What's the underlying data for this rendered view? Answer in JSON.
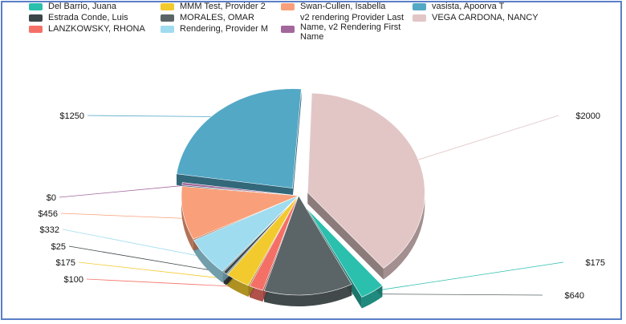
{
  "chart_data": {
    "type": "pie",
    "title": "",
    "legend_placement": "top",
    "slices": [
      {
        "name": "VEGA CARDONA, NANCY",
        "value": 2000,
        "label": "$2000",
        "color": "#e2c6c6"
      },
      {
        "name": "Del Barrio, Juana",
        "value": 175,
        "label": "$175",
        "color": "#2bbfae"
      },
      {
        "name": "MORALES, OMAR",
        "value": 640,
        "label": "$640",
        "color": "#5b6567"
      },
      {
        "name": "LANZKOWSKY, RHONA",
        "value": 100,
        "label": "$100",
        "color": "#f47067"
      },
      {
        "name": "MMM Test, Provider 2",
        "value": 175,
        "label": "$175",
        "color": "#f2ca2e"
      },
      {
        "name": "Estrada Conde, Luis",
        "value": 25,
        "label": "$25",
        "color": "#3b4648"
      },
      {
        "name": "Rendering, Provider M",
        "value": 332,
        "label": "$332",
        "color": "#9fdcef"
      },
      {
        "name": "Swan-Cullen, Isabella",
        "value": 456,
        "label": "$456",
        "color": "#f9a07a"
      },
      {
        "name": "v2 rendering Provider Last Name, v2 Rendering First Name",
        "value": 0,
        "label": "$0",
        "color": "#a3679c"
      },
      {
        "name": "vasista, Apoorva T",
        "value": 1250,
        "label": "$1250",
        "color": "#53a8c6"
      }
    ]
  },
  "legend": [
    {
      "label": "Del Barrio, Juana",
      "color": "#2bbfae"
    },
    {
      "label": "Estrada Conde, Luis",
      "color": "#3b4648"
    },
    {
      "label": "LANZKOWSKY, RHONA",
      "color": "#f47067"
    },
    {
      "label": "MMM Test, Provider 2",
      "color": "#f2ca2e"
    },
    {
      "label": "MORALES, OMAR",
      "color": "#5b6567"
    },
    {
      "label": "Rendering, Provider M",
      "color": "#9fdcef"
    },
    {
      "label": "Swan-Cullen, Isabella",
      "color": "#f9a07a"
    },
    {
      "label": "v2 rendering Provider Last\nName, v2 Rendering First\nName",
      "color": "#a3679c"
    },
    {
      "label": "vasista, Apoorva T",
      "color": "#53a8c6"
    },
    {
      "label": "VEGA CARDONA, NANCY",
      "color": "#e2c6c6"
    }
  ]
}
